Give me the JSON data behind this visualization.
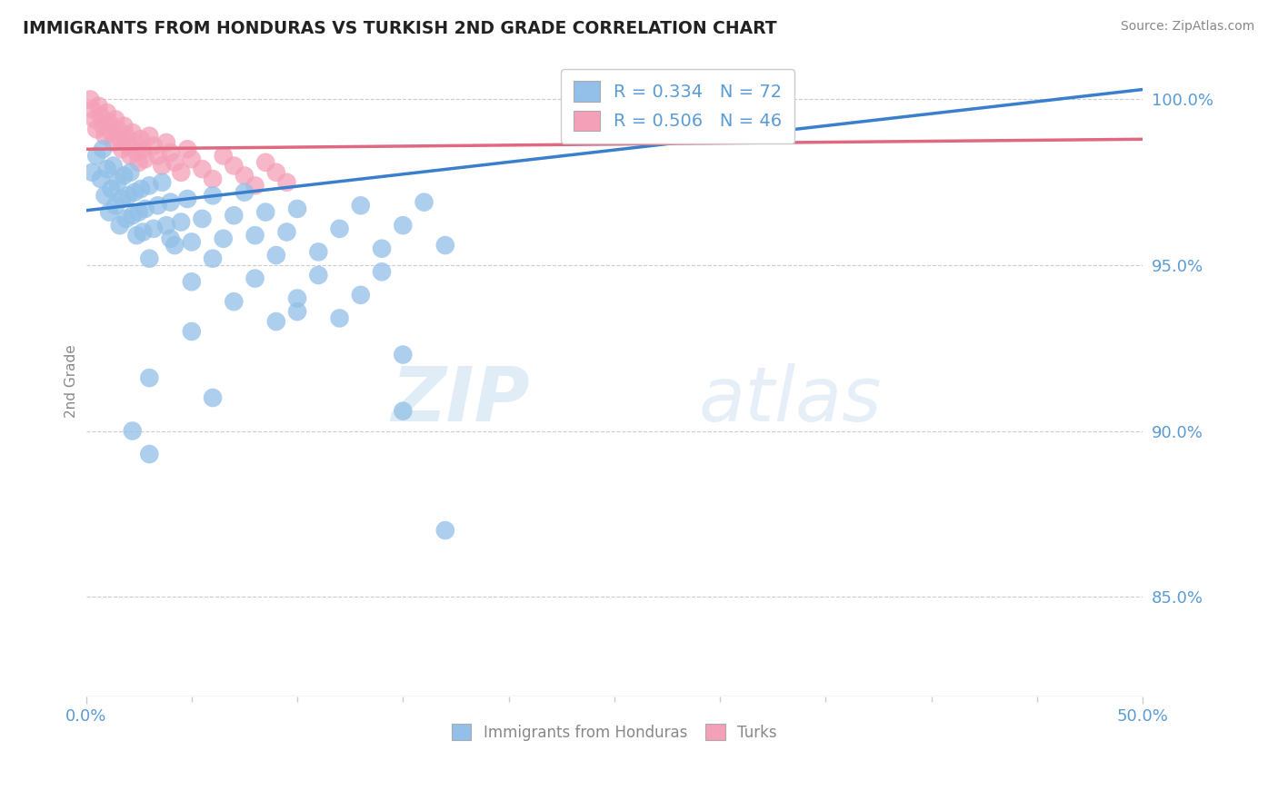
{
  "title": "IMMIGRANTS FROM HONDURAS VS TURKISH 2ND GRADE CORRELATION CHART",
  "source_text": "Source: ZipAtlas.com",
  "ylabel": "2nd Grade",
  "xlim": [
    0.0,
    0.5
  ],
  "ylim": [
    0.82,
    1.01
  ],
  "ytick_values": [
    0.85,
    0.9,
    0.95,
    1.0
  ],
  "legend_entry1": "R = 0.334   N = 72",
  "legend_entry2": "R = 0.506   N = 46",
  "watermark_zip": "ZIP",
  "watermark_atlas": "atlas",
  "color_blue": "#92C0E8",
  "color_pink": "#F4A0B8",
  "color_line_blue": "#3A7FCC",
  "color_line_pink": "#E06880",
  "color_text": "#5B9BD5",
  "blue_trendline": [
    [
      0.0,
      0.9665
    ],
    [
      0.5,
      1.003
    ]
  ],
  "pink_trendline": [
    [
      0.0,
      0.985
    ],
    [
      0.5,
      0.988
    ]
  ],
  "blue_scatter": [
    [
      0.003,
      0.978
    ],
    [
      0.005,
      0.983
    ],
    [
      0.007,
      0.976
    ],
    [
      0.008,
      0.985
    ],
    [
      0.009,
      0.971
    ],
    [
      0.01,
      0.979
    ],
    [
      0.011,
      0.966
    ],
    [
      0.012,
      0.973
    ],
    [
      0.013,
      0.98
    ],
    [
      0.014,
      0.968
    ],
    [
      0.015,
      0.975
    ],
    [
      0.016,
      0.962
    ],
    [
      0.017,
      0.97
    ],
    [
      0.018,
      0.977
    ],
    [
      0.019,
      0.964
    ],
    [
      0.02,
      0.971
    ],
    [
      0.021,
      0.978
    ],
    [
      0.022,
      0.965
    ],
    [
      0.023,
      0.972
    ],
    [
      0.024,
      0.959
    ],
    [
      0.025,
      0.966
    ],
    [
      0.026,
      0.973
    ],
    [
      0.027,
      0.96
    ],
    [
      0.028,
      0.967
    ],
    [
      0.03,
      0.974
    ],
    [
      0.032,
      0.961
    ],
    [
      0.034,
      0.968
    ],
    [
      0.036,
      0.975
    ],
    [
      0.038,
      0.962
    ],
    [
      0.04,
      0.969
    ],
    [
      0.042,
      0.956
    ],
    [
      0.045,
      0.963
    ],
    [
      0.048,
      0.97
    ],
    [
      0.05,
      0.957
    ],
    [
      0.055,
      0.964
    ],
    [
      0.06,
      0.971
    ],
    [
      0.065,
      0.958
    ],
    [
      0.07,
      0.965
    ],
    [
      0.075,
      0.972
    ],
    [
      0.08,
      0.959
    ],
    [
      0.085,
      0.966
    ],
    [
      0.09,
      0.953
    ],
    [
      0.095,
      0.96
    ],
    [
      0.1,
      0.967
    ],
    [
      0.11,
      0.954
    ],
    [
      0.12,
      0.961
    ],
    [
      0.13,
      0.968
    ],
    [
      0.14,
      0.955
    ],
    [
      0.15,
      0.962
    ],
    [
      0.16,
      0.969
    ],
    [
      0.17,
      0.956
    ],
    [
      0.03,
      0.952
    ],
    [
      0.04,
      0.958
    ],
    [
      0.05,
      0.945
    ],
    [
      0.06,
      0.952
    ],
    [
      0.07,
      0.939
    ],
    [
      0.08,
      0.946
    ],
    [
      0.09,
      0.933
    ],
    [
      0.1,
      0.94
    ],
    [
      0.11,
      0.947
    ],
    [
      0.12,
      0.934
    ],
    [
      0.13,
      0.941
    ],
    [
      0.14,
      0.948
    ],
    [
      0.05,
      0.93
    ],
    [
      0.1,
      0.936
    ],
    [
      0.15,
      0.923
    ],
    [
      0.03,
      0.916
    ],
    [
      0.06,
      0.91
    ],
    [
      0.022,
      0.9
    ],
    [
      0.15,
      0.906
    ],
    [
      0.03,
      0.893
    ],
    [
      0.17,
      0.87
    ]
  ],
  "pink_scatter": [
    [
      0.002,
      1.0
    ],
    [
      0.003,
      0.997
    ],
    [
      0.004,
      0.994
    ],
    [
      0.005,
      0.991
    ],
    [
      0.006,
      0.998
    ],
    [
      0.007,
      0.995
    ],
    [
      0.008,
      0.992
    ],
    [
      0.009,
      0.989
    ],
    [
      0.01,
      0.996
    ],
    [
      0.011,
      0.993
    ],
    [
      0.012,
      0.99
    ],
    [
      0.013,
      0.987
    ],
    [
      0.014,
      0.994
    ],
    [
      0.015,
      0.991
    ],
    [
      0.016,
      0.988
    ],
    [
      0.017,
      0.985
    ],
    [
      0.018,
      0.992
    ],
    [
      0.019,
      0.989
    ],
    [
      0.02,
      0.986
    ],
    [
      0.021,
      0.983
    ],
    [
      0.022,
      0.99
    ],
    [
      0.023,
      0.987
    ],
    [
      0.024,
      0.984
    ],
    [
      0.025,
      0.981
    ],
    [
      0.026,
      0.988
    ],
    [
      0.027,
      0.985
    ],
    [
      0.028,
      0.982
    ],
    [
      0.03,
      0.989
    ],
    [
      0.032,
      0.986
    ],
    [
      0.034,
      0.983
    ],
    [
      0.036,
      0.98
    ],
    [
      0.038,
      0.987
    ],
    [
      0.04,
      0.984
    ],
    [
      0.042,
      0.981
    ],
    [
      0.045,
      0.978
    ],
    [
      0.048,
      0.985
    ],
    [
      0.05,
      0.982
    ],
    [
      0.055,
      0.979
    ],
    [
      0.06,
      0.976
    ],
    [
      0.065,
      0.983
    ],
    [
      0.07,
      0.98
    ],
    [
      0.075,
      0.977
    ],
    [
      0.08,
      0.974
    ],
    [
      0.085,
      0.981
    ],
    [
      0.09,
      0.978
    ],
    [
      0.095,
      0.975
    ]
  ]
}
